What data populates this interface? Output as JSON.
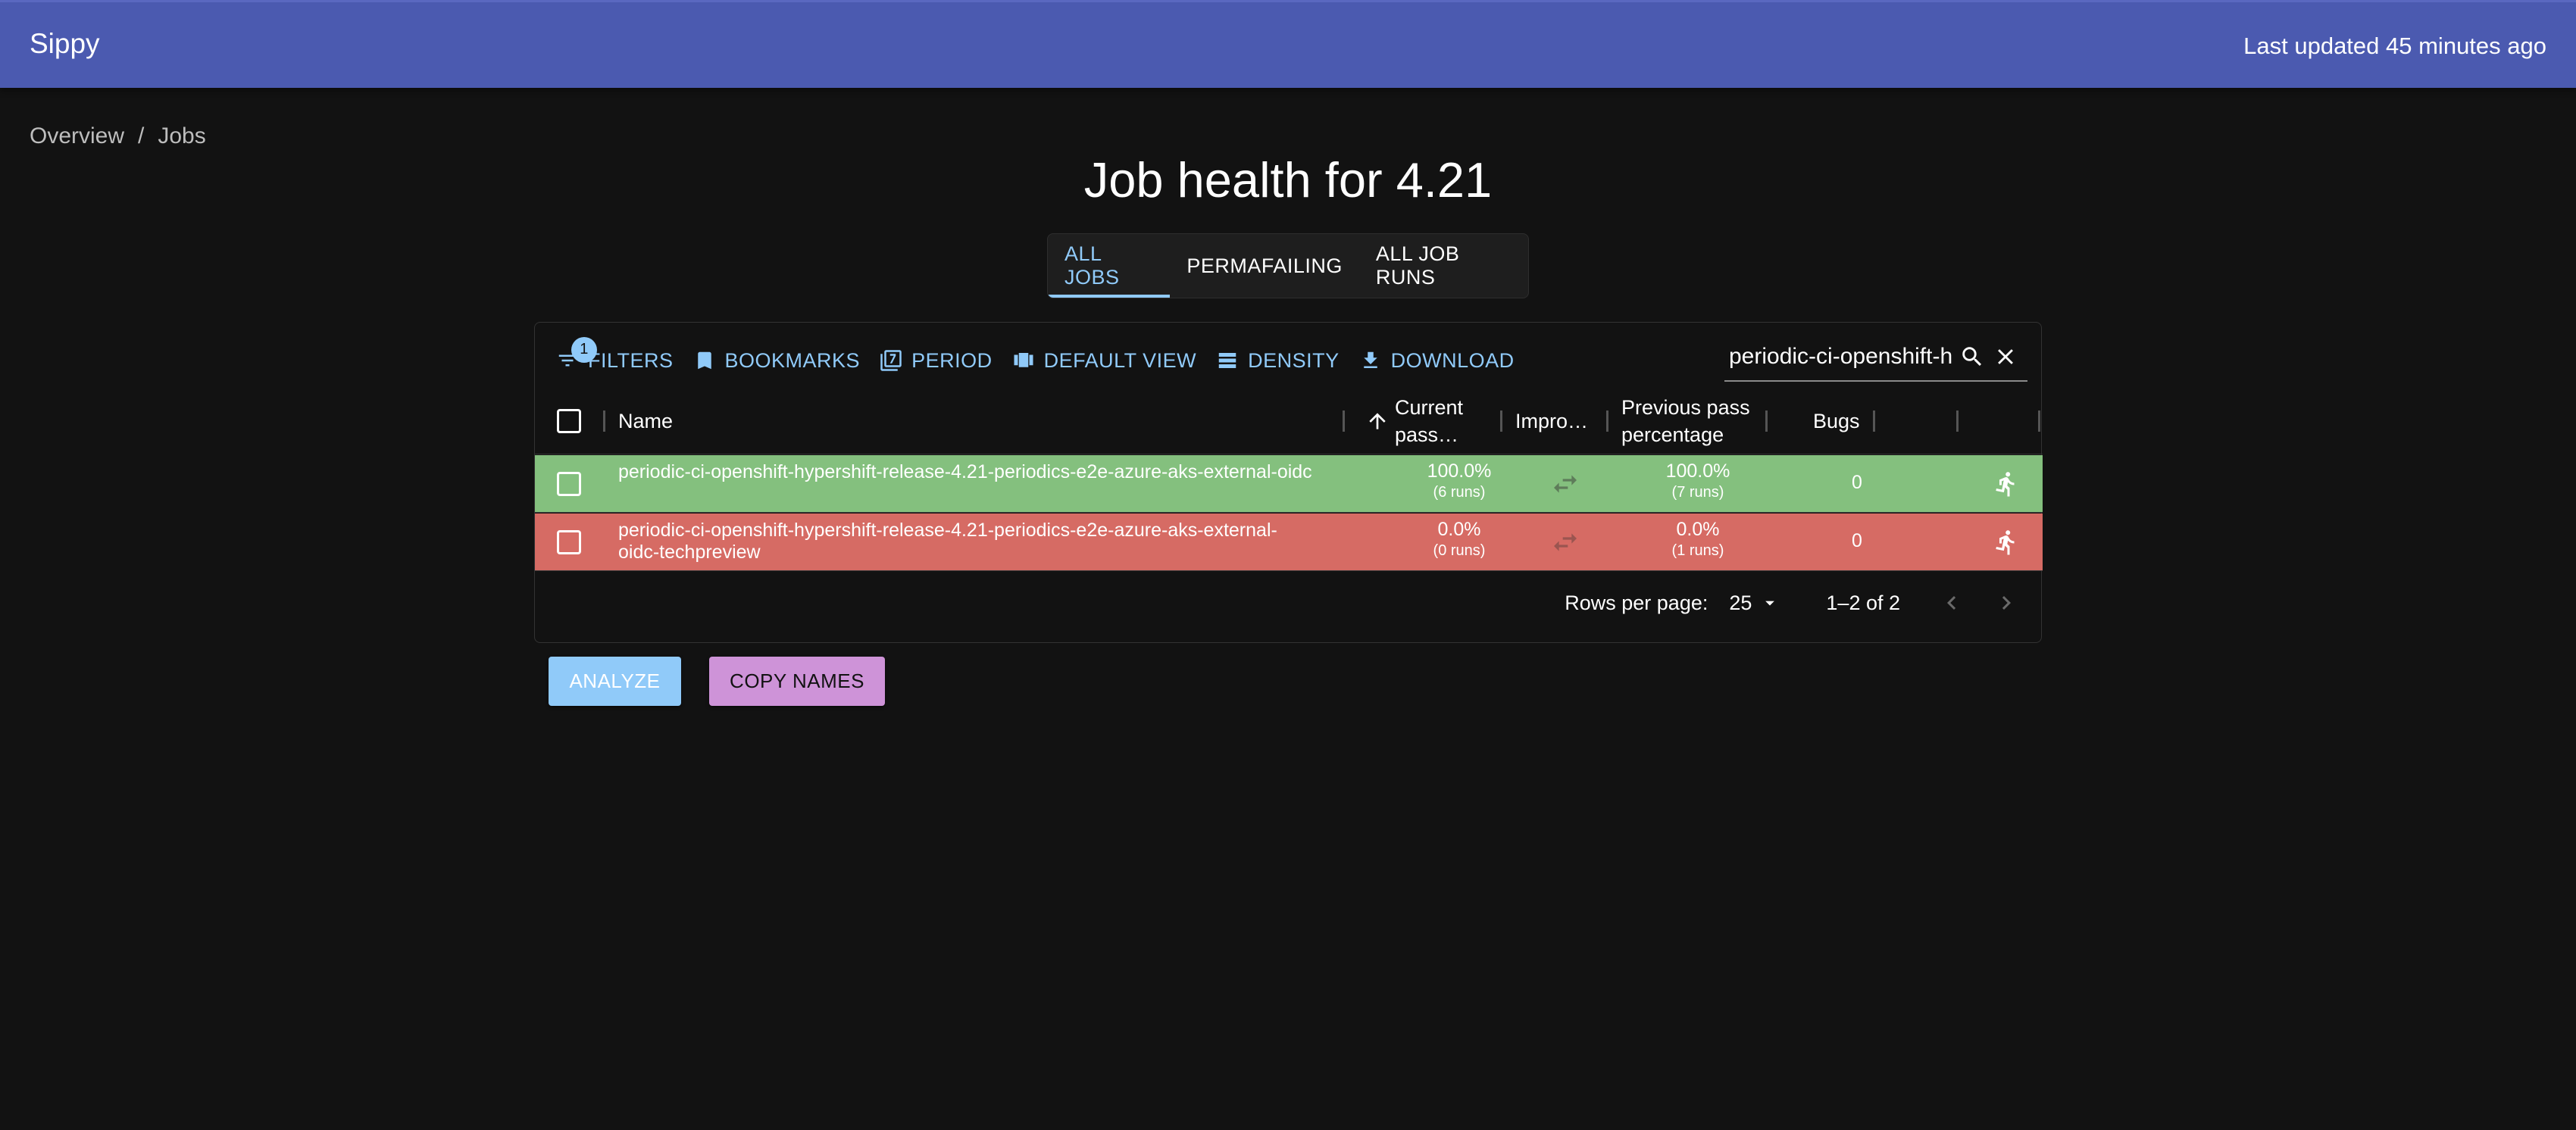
{
  "appbar": {
    "title": "Sippy",
    "last_updated": "Last updated 45 minutes ago"
  },
  "breadcrumb": {
    "items": [
      "Overview",
      "/",
      "Jobs"
    ]
  },
  "page_title": "Job health for 4.21",
  "tabs": [
    {
      "label": "ALL JOBS",
      "active": true
    },
    {
      "label": "PERMAFAILING",
      "active": false
    },
    {
      "label": "ALL JOB RUNS",
      "active": false
    }
  ],
  "toolbar": {
    "filters_label": "FILTERS",
    "filters_badge": "1",
    "bookmarks_label": "BOOKMARKS",
    "period_label": "PERIOD",
    "default_view_label": "DEFAULT VIEW",
    "density_label": "DENSITY",
    "download_label": "DOWNLOAD"
  },
  "search": {
    "value": "periodic-ci-openshift-hypershift"
  },
  "columns": {
    "name": "Name",
    "current_pass_line1": "Current",
    "current_pass_line2": "pass…",
    "improvement": "Impro…",
    "previous_pass_line1": "Previous pass",
    "previous_pass_line2": "percentage",
    "bugs": "Bugs"
  },
  "rows": [
    {
      "name": "periodic-ci-openshift-hypershift-release-4.21-periodics-e2e-azure-aks-external-oidc",
      "current_pass": "100.0%",
      "current_runs": "(6 runs)",
      "previous_pass": "100.0%",
      "previous_runs": "(7 runs)",
      "bugs": "0",
      "status_color": "#84c07e"
    },
    {
      "name": "periodic-ci-openshift-hypershift-release-4.21-periodics-e2e-azure-aks-external-oidc-techpreview",
      "current_pass": "0.0%",
      "current_runs": "(0 runs)",
      "previous_pass": "0.0%",
      "previous_runs": "(1 runs)",
      "bugs": "0",
      "status_color": "#d66b64"
    }
  ],
  "pagination": {
    "rows_per_page_label": "Rows per page:",
    "rows_per_page": "25",
    "range": "1–2 of 2"
  },
  "actions": {
    "analyze_label": "ANALYZE",
    "copy_names_label": "COPY NAMES"
  },
  "colors": {
    "appbar": "#4b5ab0",
    "accent": "#90caf9",
    "analyze_bg": "#90caf9",
    "copy_bg": "#ce93d8"
  },
  "icons": [
    "filter-icon",
    "bookmark-icon",
    "period-icon",
    "view-icon",
    "density-icon",
    "download-icon",
    "search-icon",
    "close-icon",
    "sort-arrow-up-icon",
    "swap-icon",
    "run-icon",
    "chevron-left-icon",
    "chevron-right-icon",
    "dropdown-arrow-icon"
  ]
}
